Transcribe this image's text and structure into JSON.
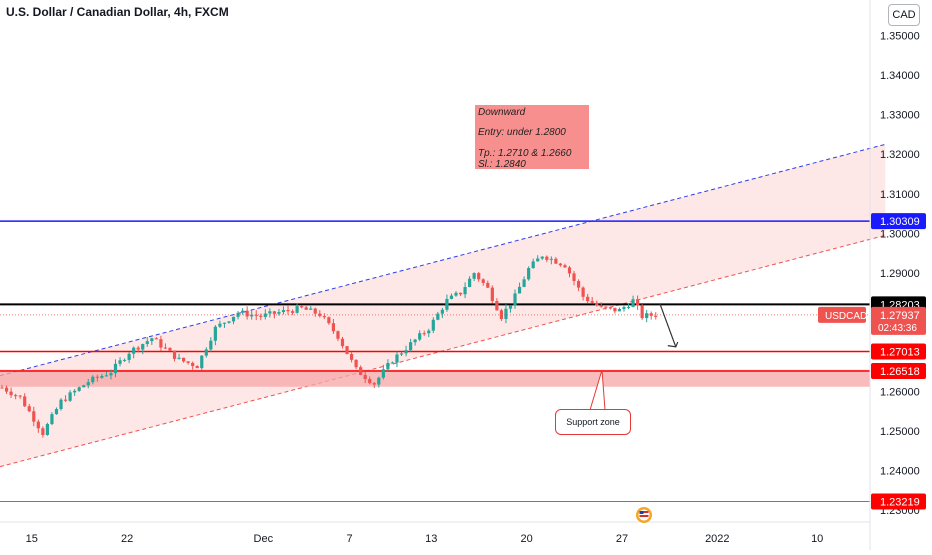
{
  "title": "U.S. Dollar / Canadian Dollar, 4h, FXCM",
  "currency_badge": "CAD",
  "note": {
    "lines": [
      "Downward",
      "Entry: under 1.2800",
      "Tp.: 1.2710 & 1.2660",
      "Sl.: 1.2840"
    ]
  },
  "callout": "Support zone",
  "symbol_tag": "USDCAD",
  "countdown": "02:43:36",
  "colors": {
    "up": "#26a69a",
    "down": "#ef5350",
    "channel_fill": "#fde3e3",
    "support_fill": "#f7a6a6",
    "resistance": "#1a1aff",
    "entry_line": "#000000",
    "target_line": "#ff0000",
    "note_fill": "#f88f8f"
  },
  "chart_data": {
    "type": "candlestick",
    "title": "U.S. Dollar / Canadian Dollar, 4h, FXCM",
    "ylim": [
      1.227,
      1.359
    ],
    "y_ticks": [
      1.23,
      1.24,
      1.25,
      1.26,
      1.27,
      1.28,
      1.29,
      1.3,
      1.31,
      1.32,
      1.33,
      1.34,
      1.35
    ],
    "y_tick_labels": [
      "1.23000",
      "1.24000",
      "1.25000",
      "1.26000",
      "1.27000",
      "1.28000",
      "1.29000",
      "1.30000",
      "1.31000",
      "1.32000",
      "1.33000",
      "1.34000",
      "1.35000"
    ],
    "x_tick_labels": [
      "15",
      "22",
      "Dec",
      "7",
      "13",
      "20",
      "27",
      "2022",
      "10"
    ],
    "x_tick_index": [
      7,
      28,
      58,
      77,
      95,
      116,
      137,
      158,
      180
    ],
    "bar_count": 195,
    "price_levels": [
      {
        "label": "1.30309",
        "value": 1.30309,
        "style": "resistance"
      },
      {
        "label": "1.28203",
        "value": 1.28203,
        "style": "entry"
      },
      {
        "label": "1.27013",
        "value": 1.27013,
        "style": "target"
      },
      {
        "label": "1.26518",
        "value": 1.26518,
        "style": "target"
      },
      {
        "label": "1.23219",
        "value": 1.23219,
        "style": "thin"
      }
    ],
    "last_price": {
      "label": "1.27937",
      "value": 1.27937
    },
    "support_zone": [
      1.2612,
      1.2655
    ],
    "channel_upper": [
      [
        0,
        1.264
      ],
      [
        195,
        1.3225
      ]
    ],
    "channel_lower": [
      [
        0,
        1.241
      ],
      [
        195,
        1.2995
      ]
    ],
    "waypoints": [
      [
        0,
        1.261
      ],
      [
        4,
        1.2585
      ],
      [
        9,
        1.2495
      ],
      [
        13,
        1.2575
      ],
      [
        19,
        1.2625
      ],
      [
        24,
        1.265
      ],
      [
        28,
        1.27
      ],
      [
        33,
        1.2735
      ],
      [
        39,
        1.268
      ],
      [
        43,
        1.2665
      ],
      [
        47,
        1.276
      ],
      [
        52,
        1.28
      ],
      [
        57,
        1.279
      ],
      [
        61,
        1.28
      ],
      [
        66,
        1.281
      ],
      [
        70,
        1.2795
      ],
      [
        74,
        1.274
      ],
      [
        78,
        1.2655
      ],
      [
        82,
        1.262
      ],
      [
        86,
        1.268
      ],
      [
        90,
        1.272
      ],
      [
        94,
        1.276
      ],
      [
        98,
        1.283
      ],
      [
        101,
        1.285
      ],
      [
        104,
        1.29
      ],
      [
        107,
        1.286
      ],
      [
        110,
        1.279
      ],
      [
        113,
        1.284
      ],
      [
        116,
        1.291
      ],
      [
        119,
        1.2945
      ],
      [
        124,
        1.292
      ],
      [
        128,
        1.284
      ],
      [
        132,
        1.281
      ],
      [
        136,
        1.2805
      ],
      [
        139,
        1.283
      ],
      [
        141,
        1.279
      ],
      [
        144,
        1.2794
      ]
    ]
  }
}
